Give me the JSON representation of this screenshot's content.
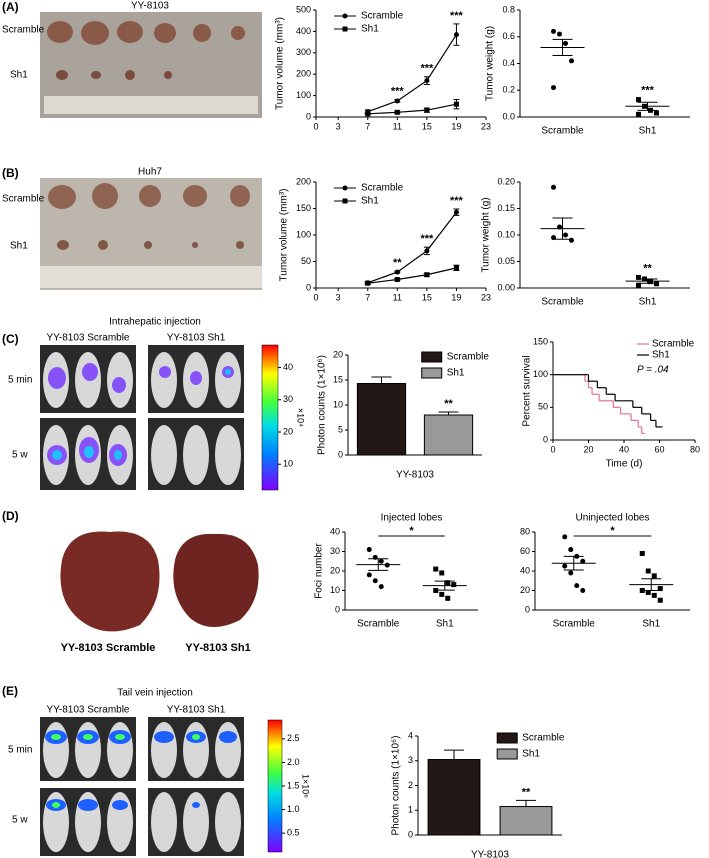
{
  "figure": {
    "panel_labels": [
      "(A)",
      "(B)",
      "(C)",
      "(D)",
      "(E)"
    ],
    "photos": {
      "a": {
        "title": "YY-8103",
        "rows": [
          "Scramble",
          "Sh1"
        ]
      },
      "b": {
        "title": "Huh7",
        "rows": [
          "Scramble",
          "Sh1"
        ]
      },
      "c": {
        "title": "Intrahepatic injection",
        "groups": [
          "YY-8103 Scramble",
          "YY-8103 Sh1"
        ],
        "rows": [
          "5 min",
          "5 w"
        ],
        "colorbar": {
          "lim": [
            2,
            47
          ],
          "ticks": [
            10,
            20,
            30,
            40
          ],
          "unit": "×10⁴"
        }
      },
      "d": {
        "captions": [
          "YY-8103 Scramble",
          "YY-8103 Sh1"
        ]
      },
      "e": {
        "title": "Tail vein injection",
        "groups": [
          "YY-8103 Scramble",
          "YY-8103 Sh1"
        ],
        "rows": [
          "5 min",
          "5 w"
        ],
        "colorbar": {
          "lim": [
            0.1,
            2.9
          ],
          "ticks": [
            0.5,
            {
              "value": 1,
              "label": "1.0"
            },
            1.5,
            {
              "value": 2,
              "label": "2.0"
            },
            2.5
          ],
          "unit": "1×10⁶"
        }
      }
    }
  },
  "chart_data": [
    {
      "type": "line",
      "ylabel": "Tumor volume (mm³)",
      "x": [
        7,
        11,
        15,
        19
      ],
      "xlim": [
        0,
        23
      ],
      "xticks": [
        0,
        3,
        7,
        11,
        15,
        19,
        23
      ],
      "ylim": [
        0,
        500
      ],
      "yticks": [
        0,
        100,
        200,
        300,
        400,
        500
      ],
      "legend": "upper left",
      "series": [
        {
          "name": "Scramble",
          "color": "#000000",
          "marker": "circle",
          "values": [
            25,
            75,
            170,
            385
          ],
          "errors": [
            8,
            6,
            18,
            50
          ]
        },
        {
          "name": "Sh1",
          "color": "#000000",
          "marker": "square",
          "values": [
            15,
            22,
            32,
            60
          ],
          "errors": [
            4,
            5,
            10,
            22
          ]
        }
      ],
      "annotations": [
        {
          "x": 11,
          "text": "***"
        },
        {
          "x": 15,
          "text": "***"
        },
        {
          "x": 19,
          "text": "***"
        }
      ]
    },
    {
      "type": "dot",
      "ylabel": "Tumor weight (g)",
      "categories": [
        "Scramble",
        "Sh1"
      ],
      "markers": [
        "circle",
        "square"
      ],
      "points": [
        [
          0.64,
          0.62,
          0.55,
          0.42,
          0.22
        ],
        [
          0.13,
          0.08,
          0.05,
          0.03,
          0.02
        ]
      ],
      "means": [
        0.52,
        0.08
      ],
      "sem": [
        0.06,
        0.03
      ],
      "ylim": [
        0,
        0.8
      ],
      "yticks": [
        {
          "value": 0,
          "label": "0.0"
        },
        0.2,
        0.4,
        0.6,
        0.8
      ],
      "significance": "***",
      "bracket": false
    },
    {
      "type": "line",
      "ylabel": "Tumor volume (mm³)",
      "x": [
        7,
        11,
        15,
        19
      ],
      "xlim": [
        0,
        23
      ],
      "xticks": [
        0,
        3,
        7,
        11,
        15,
        19,
        23
      ],
      "ylim": [
        0,
        200
      ],
      "yticks": [
        0,
        50,
        100,
        150,
        200
      ],
      "legend": "upper left",
      "series": [
        {
          "name": "Scramble",
          "color": "#000000",
          "marker": "circle",
          "values": [
            10,
            30,
            70,
            143
          ],
          "errors": [
            2,
            2,
            7,
            6
          ]
        },
        {
          "name": "Sh1",
          "color": "#000000",
          "marker": "square",
          "values": [
            9,
            16,
            25,
            38
          ],
          "errors": [
            2,
            2,
            3,
            5
          ]
        }
      ],
      "annotations": [
        {
          "x": 11,
          "text": "**"
        },
        {
          "x": 15,
          "text": "***"
        },
        {
          "x": 19,
          "text": "***"
        }
      ]
    },
    {
      "type": "dot",
      "ylabel": "Tumor weight (g)",
      "categories": [
        "Scramble",
        "Sh1"
      ],
      "markers": [
        "circle",
        "square"
      ],
      "points": [
        [
          0.19,
          0.115,
          0.1,
          0.09,
          0.095
        ],
        [
          0.02,
          0.017,
          0.012,
          0.008,
          0.005
        ]
      ],
      "means": [
        0.112,
        0.013
      ],
      "sem": [
        0.02,
        0.004
      ],
      "ylim": [
        0,
        0.2
      ],
      "yticks": [
        {
          "value": 0,
          "label": "0.00"
        },
        0.05,
        {
          "value": 0.1,
          "label": "0.10"
        },
        0.15,
        {
          "value": 0.2,
          "label": "0.20"
        }
      ],
      "significance": "**",
      "bracket": false
    },
    {
      "type": "bar",
      "ylabel": "Photon counts (1×10⁶)",
      "xlabel": "YY-8103",
      "categories": [
        "Scramble",
        "Sh1"
      ],
      "values": [
        14.3,
        8.0
      ],
      "errors": [
        1.3,
        0.6
      ],
      "colors": [
        "#231815",
        "#999999"
      ],
      "ylim": [
        0,
        20
      ],
      "yticks": [
        0,
        5,
        10,
        15,
        20
      ],
      "significance": "**",
      "legend": "upper right"
    },
    {
      "type": "step",
      "ylabel": "Percent survival",
      "xlabel": "Time (d)",
      "xlim": [
        0,
        80
      ],
      "xticks": [
        0,
        20,
        40,
        60,
        80
      ],
      "ylim": [
        0,
        150
      ],
      "yticks": [
        0,
        50,
        100,
        150
      ],
      "legend": "upper right",
      "annotation": "P = .04",
      "series": [
        {
          "name": "Scramble",
          "color": "#e8709a",
          "x": [
            0,
            18,
            20,
            22,
            26,
            34,
            38,
            44,
            48,
            50
          ],
          "values": [
            100,
            90,
            80,
            70,
            60,
            50,
            40,
            30,
            20,
            10
          ]
        },
        {
          "name": "Sh1",
          "color": "#000000",
          "x": [
            0,
            20,
            25,
            30,
            35,
            45,
            50,
            55,
            58,
            60
          ],
          "values": [
            100,
            90,
            80,
            70,
            60,
            50,
            40,
            30,
            20,
            20
          ]
        }
      ]
    },
    {
      "type": "dot",
      "title": "Injected lobes",
      "ylabel": "Foci number",
      "categories": [
        "Scramble",
        "Sh1"
      ],
      "markers": [
        "circle",
        "square"
      ],
      "points": [
        [
          31,
          27,
          25,
          23,
          18,
          15,
          12
        ],
        [
          21,
          19,
          14,
          13,
          10,
          8,
          6
        ]
      ],
      "means": [
        23.3,
        12.5
      ],
      "sem": [
        3,
        2.3
      ],
      "ylim": [
        0,
        40
      ],
      "yticks": [
        0,
        10,
        20,
        30,
        40
      ],
      "significance": "*",
      "bracket": true
    },
    {
      "type": "dot",
      "title": "Uninjected lobes",
      "categories": [
        "Scramble",
        "Sh1"
      ],
      "markers": [
        "circle",
        "square"
      ],
      "points": [
        [
          75,
          62,
          55,
          50,
          45,
          38,
          25,
          20
        ],
        [
          58,
          40,
          35,
          22,
          20,
          18,
          15,
          10
        ]
      ],
      "means": [
        48,
        26
      ],
      "sem": [
        7,
        6
      ],
      "ylim": [
        0,
        80
      ],
      "yticks": [
        0,
        20,
        40,
        60,
        80
      ],
      "significance": "*",
      "bracket": true
    },
    {
      "type": "bar",
      "ylabel": "Photon counts (1×10⁶)",
      "xlabel": "YY-8103",
      "categories": [
        "Scramble",
        "Sh1"
      ],
      "values": [
        3.05,
        1.15
      ],
      "errors": [
        0.38,
        0.25
      ],
      "colors": [
        "#231815",
        "#999999"
      ],
      "ylim": [
        0,
        4
      ],
      "yticks": [
        0,
        1,
        2,
        3,
        4
      ],
      "significance": "**",
      "legend": "upper right"
    }
  ]
}
